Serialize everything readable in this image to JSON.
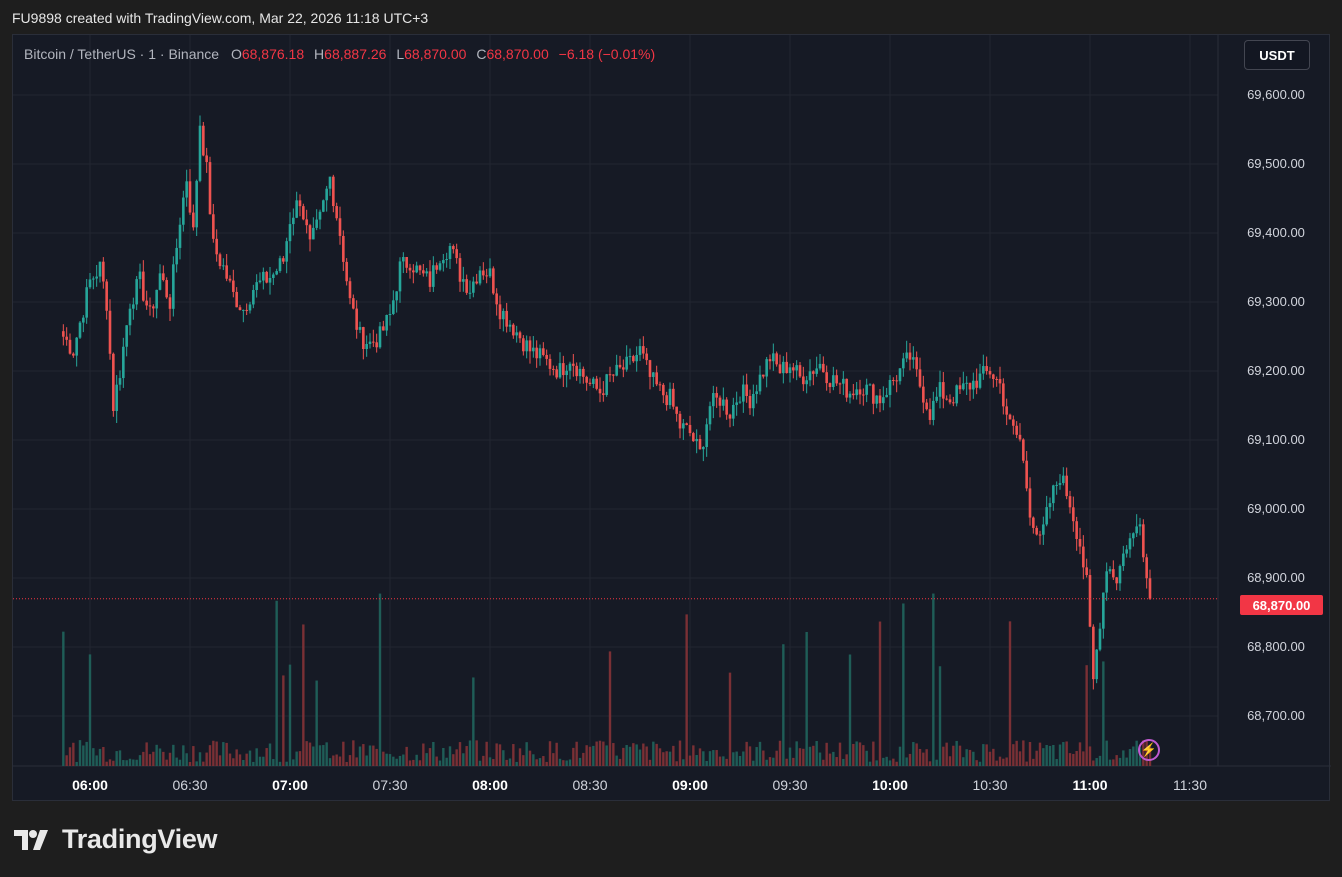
{
  "header": {
    "text": "FU9898 created with TradingView.com, Mar 22, 2026 11:18 UTC+3"
  },
  "legend": {
    "symbol": "Bitcoin / TetherUS · 1 · Binance",
    "o_label": "O",
    "o_value": "68,876.18",
    "h_label": "H",
    "h_value": "68,887.26",
    "l_label": "L",
    "l_value": "68,870.00",
    "c_label": "C",
    "c_value": "68,870.00",
    "change": "−6.18 (−0.01%)"
  },
  "currency_button": "USDT",
  "last_price_tag": "68,870.00",
  "brand": {
    "name": "TradingView",
    "icon": "tradingview-logo-icon"
  },
  "colors": {
    "up": "#26a69a",
    "down": "#ef5350",
    "background": "#161a25",
    "grid": "#222631",
    "text": "#d1d4dc"
  },
  "chart_data": {
    "type": "candlestick",
    "symbol": "Bitcoin / TetherUS",
    "interval": "1",
    "exchange": "Binance",
    "x_ticks": [
      "06:00",
      "06:30",
      "07:00",
      "07:30",
      "08:00",
      "08:30",
      "09:00",
      "09:30",
      "10:00",
      "10:30",
      "11:00",
      "11:30"
    ],
    "x_ticks_bold": [
      "06:00",
      "07:00",
      "08:00",
      "09:00",
      "10:00",
      "11:00"
    ],
    "y_ticks": [
      "69,600.00",
      "69,500.00",
      "69,400.00",
      "69,300.00",
      "69,200.00",
      "69,100.00",
      "69,000.00",
      "68,900.00",
      "68,800.00",
      "68,700.00"
    ],
    "ylim": [
      68640,
      69680
    ],
    "last_price": 68870,
    "grid": true,
    "approx_close_series": [
      {
        "t": "05:52",
        "p": 69250
      },
      {
        "t": "05:55",
        "p": 69230
      },
      {
        "t": "05:57",
        "p": 69270
      },
      {
        "t": "06:00",
        "p": 69330
      },
      {
        "t": "06:03",
        "p": 69350
      },
      {
        "t": "06:05",
        "p": 69300
      },
      {
        "t": "06:07",
        "p": 69150
      },
      {
        "t": "06:09",
        "p": 69200
      },
      {
        "t": "06:12",
        "p": 69300
      },
      {
        "t": "06:15",
        "p": 69330
      },
      {
        "t": "06:18",
        "p": 69280
      },
      {
        "t": "06:21",
        "p": 69340
      },
      {
        "t": "06:24",
        "p": 69300
      },
      {
        "t": "06:27",
        "p": 69420
      },
      {
        "t": "06:29",
        "p": 69480
      },
      {
        "t": "06:31",
        "p": 69400
      },
      {
        "t": "06:33",
        "p": 69560
      },
      {
        "t": "06:35",
        "p": 69490
      },
      {
        "t": "06:37",
        "p": 69380
      },
      {
        "t": "06:40",
        "p": 69350
      },
      {
        "t": "06:43",
        "p": 69310
      },
      {
        "t": "06:46",
        "p": 69290
      },
      {
        "t": "06:49",
        "p": 69320
      },
      {
        "t": "06:52",
        "p": 69330
      },
      {
        "t": "06:55",
        "p": 69340
      },
      {
        "t": "06:58",
        "p": 69360
      },
      {
        "t": "07:00",
        "p": 69420
      },
      {
        "t": "07:03",
        "p": 69450
      },
      {
        "t": "07:06",
        "p": 69380
      },
      {
        "t": "07:09",
        "p": 69420
      },
      {
        "t": "07:12",
        "p": 69480
      },
      {
        "t": "07:15",
        "p": 69400
      },
      {
        "t": "07:18",
        "p": 69300
      },
      {
        "t": "07:21",
        "p": 69250
      },
      {
        "t": "07:24",
        "p": 69240
      },
      {
        "t": "07:27",
        "p": 69250
      },
      {
        "t": "07:30",
        "p": 69280
      },
      {
        "t": "07:33",
        "p": 69350
      },
      {
        "t": "07:36",
        "p": 69360
      },
      {
        "t": "07:39",
        "p": 69340
      },
      {
        "t": "07:42",
        "p": 69330
      },
      {
        "t": "07:45",
        "p": 69370
      },
      {
        "t": "07:48",
        "p": 69380
      },
      {
        "t": "07:51",
        "p": 69340
      },
      {
        "t": "07:54",
        "p": 69320
      },
      {
        "t": "07:57",
        "p": 69350
      },
      {
        "t": "08:00",
        "p": 69340
      },
      {
        "t": "08:03",
        "p": 69290
      },
      {
        "t": "08:06",
        "p": 69270
      },
      {
        "t": "08:09",
        "p": 69250
      },
      {
        "t": "08:12",
        "p": 69230
      },
      {
        "t": "08:15",
        "p": 69220
      },
      {
        "t": "08:18",
        "p": 69210
      },
      {
        "t": "08:21",
        "p": 69200
      },
      {
        "t": "08:24",
        "p": 69220
      },
      {
        "t": "08:27",
        "p": 69200
      },
      {
        "t": "08:30",
        "p": 69180
      },
      {
        "t": "08:33",
        "p": 69170
      },
      {
        "t": "08:36",
        "p": 69190
      },
      {
        "t": "08:39",
        "p": 69200
      },
      {
        "t": "08:42",
        "p": 69210
      },
      {
        "t": "08:45",
        "p": 69230
      },
      {
        "t": "08:48",
        "p": 69190
      },
      {
        "t": "08:51",
        "p": 69170
      },
      {
        "t": "08:54",
        "p": 69160
      },
      {
        "t": "08:57",
        "p": 69120
      },
      {
        "t": "09:00",
        "p": 69110
      },
      {
        "t": "09:03",
        "p": 69080
      },
      {
        "t": "09:06",
        "p": 69150
      },
      {
        "t": "09:09",
        "p": 69160
      },
      {
        "t": "09:12",
        "p": 69140
      },
      {
        "t": "09:15",
        "p": 69170
      },
      {
        "t": "09:18",
        "p": 69160
      },
      {
        "t": "09:21",
        "p": 69190
      },
      {
        "t": "09:24",
        "p": 69220
      },
      {
        "t": "09:27",
        "p": 69200
      },
      {
        "t": "09:30",
        "p": 69210
      },
      {
        "t": "09:33",
        "p": 69190
      },
      {
        "t": "09:36",
        "p": 69200
      },
      {
        "t": "09:39",
        "p": 69210
      },
      {
        "t": "09:42",
        "p": 69190
      },
      {
        "t": "09:45",
        "p": 69180
      },
      {
        "t": "09:48",
        "p": 69170
      },
      {
        "t": "09:51",
        "p": 69180
      },
      {
        "t": "09:54",
        "p": 69170
      },
      {
        "t": "09:57",
        "p": 69160
      },
      {
        "t": "10:00",
        "p": 69180
      },
      {
        "t": "10:03",
        "p": 69200
      },
      {
        "t": "10:06",
        "p": 69220
      },
      {
        "t": "10:09",
        "p": 69180
      },
      {
        "t": "10:12",
        "p": 69140
      },
      {
        "t": "10:15",
        "p": 69170
      },
      {
        "t": "10:18",
        "p": 69160
      },
      {
        "t": "10:21",
        "p": 69170
      },
      {
        "t": "10:24",
        "p": 69180
      },
      {
        "t": "10:27",
        "p": 69190
      },
      {
        "t": "10:30",
        "p": 69200
      },
      {
        "t": "10:33",
        "p": 69180
      },
      {
        "t": "10:36",
        "p": 69120
      },
      {
        "t": "10:39",
        "p": 69100
      },
      {
        "t": "10:42",
        "p": 69000
      },
      {
        "t": "10:45",
        "p": 68950
      },
      {
        "t": "10:48",
        "p": 69010
      },
      {
        "t": "10:51",
        "p": 69050
      },
      {
        "t": "10:54",
        "p": 69010
      },
      {
        "t": "10:57",
        "p": 68950
      },
      {
        "t": "10:59",
        "p": 68890
      },
      {
        "t": "11:01",
        "p": 68750
      },
      {
        "t": "11:03",
        "p": 68840
      },
      {
        "t": "11:05",
        "p": 68920
      },
      {
        "t": "11:08",
        "p": 68900
      },
      {
        "t": "11:11",
        "p": 68950
      },
      {
        "t": "11:13",
        "p": 68960
      },
      {
        "t": "11:15",
        "p": 68990
      },
      {
        "t": "11:17",
        "p": 68900
      },
      {
        "t": "11:18",
        "p": 68870
      }
    ]
  }
}
